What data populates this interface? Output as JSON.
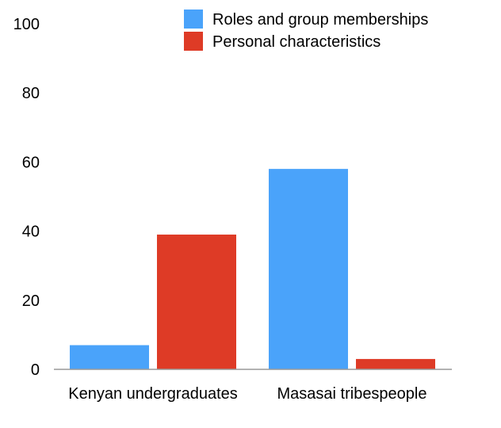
{
  "chart_data": {
    "type": "bar",
    "title": "",
    "xlabel": "",
    "ylabel": "",
    "ylim": [
      0,
      100
    ],
    "yticks": [
      0,
      20,
      40,
      60,
      80,
      100
    ],
    "grid": false,
    "legend_position": "top-right",
    "categories": [
      "Kenyan undergraduates",
      "Masasai tribespeople"
    ],
    "series": [
      {
        "name": "Roles and group memberships",
        "color": "#4aa3fa",
        "values": [
          7,
          58
        ]
      },
      {
        "name": "Personal characteristics",
        "color": "#de3b26",
        "values": [
          39,
          3
        ]
      }
    ]
  }
}
